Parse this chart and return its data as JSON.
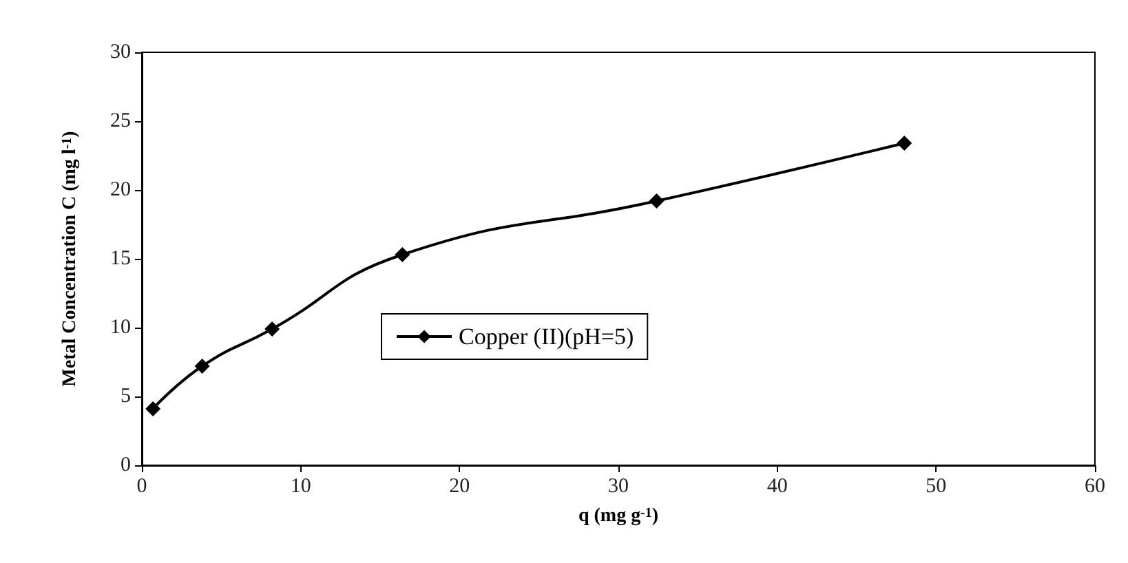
{
  "chart_data": {
    "type": "line",
    "xlabel": "q (mg g$^{-1}$)",
    "ylabel": "Metal Concentration C (mg l$^{-1}$)",
    "x": [
      0.7,
      3.8,
      8.2,
      16.4,
      32.4,
      48.0
    ],
    "series": [
      {
        "name": "Copper (II)(pH=5)",
        "color": "#000000",
        "values": [
          4.1,
          7.2,
          9.9,
          15.3,
          19.2,
          23.4
        ]
      }
    ],
    "xlim": [
      0,
      60
    ],
    "xticks": [
      0,
      10,
      20,
      30,
      40,
      50,
      60
    ],
    "ylim": [
      0,
      30
    ],
    "yticks": [
      0,
      5,
      10,
      15,
      20,
      25,
      30
    ],
    "grid": false,
    "legend": "center",
    "marker": "diamond",
    "line_style": "solid"
  }
}
